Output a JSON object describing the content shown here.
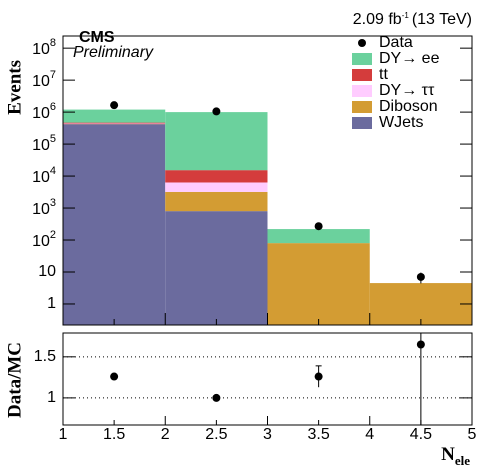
{
  "chart_data": [
    {
      "type": "histogram",
      "bins": [
        1,
        2,
        3,
        4,
        5
      ],
      "series": [
        {
          "name": "WJets",
          "color": "#6b6b9e",
          "values": [
            420000,
            800,
            0,
            0
          ]
        },
        {
          "name": "Diboson",
          "color": "#d39c33",
          "values": [
            5000,
            2400,
            80,
            4.5
          ]
        },
        {
          "name": "DY→ ττ",
          "color": "#ffccff",
          "values": [
            15000,
            3100,
            0,
            0
          ]
        },
        {
          "name": "tt",
          "color": "#d43c3c",
          "values": [
            30000,
            9000,
            0,
            0
          ]
        },
        {
          "name": "DY→ ee",
          "color": "#6bd19d",
          "values": [
            730000,
            985000,
            140,
            0
          ]
        }
      ],
      "data": {
        "name": "Data",
        "color": "#000000",
        "x": [
          1.5,
          2.5,
          3.5,
          4.5
        ],
        "values": [
          1650000,
          1050000,
          270,
          7
        ],
        "errors": [
          1300,
          1000,
          16,
          2.6
        ]
      },
      "log_y": true,
      "ylim": [
        0.22,
        240000000
      ],
      "yticks": [
        1,
        10,
        {
          "value": 100,
          "label": "10",
          "exponent": "2"
        },
        {
          "value": 1000,
          "label": "10",
          "exponent": "3"
        },
        {
          "value": 10000,
          "label": "10",
          "exponent": "4"
        },
        {
          "value": 100000,
          "label": "10",
          "exponent": "5"
        },
        {
          "value": 1000000,
          "label": "10",
          "exponent": "6"
        },
        {
          "value": 10000000,
          "label": "10",
          "exponent": "7"
        },
        {
          "value": 100000000,
          "label": "10",
          "exponent": "8"
        }
      ],
      "ylabel": "Events",
      "experiment": "CMS",
      "status": "Preliminary",
      "lumi": {
        "value": "2.09 fb",
        "exponent": "-1",
        "energy": "(13 TeV)"
      }
    },
    {
      "type": "scatter",
      "x": [
        1.5,
        2.5,
        3.5,
        4.5
      ],
      "values": [
        1.26,
        1.0,
        1.26,
        1.65
      ],
      "errors": [
        0.01,
        0.01,
        0.13,
        1.0
      ],
      "color": "#000000",
      "xlim": [
        1,
        5
      ],
      "xticks": [
        1,
        1.5,
        2,
        2.5,
        3,
        3.5,
        4,
        4.5,
        5
      ],
      "ylim": [
        0.67,
        1.79
      ],
      "yticks": [
        1,
        1.5
      ],
      "grid": true,
      "ylabel": "Data/MC",
      "xlabel": {
        "main": "N",
        "sub": "ele"
      }
    }
  ]
}
